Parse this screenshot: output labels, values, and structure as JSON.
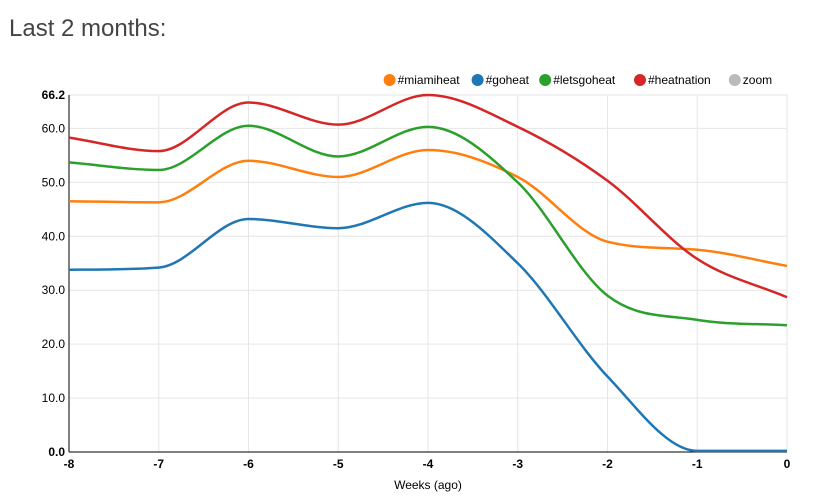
{
  "page": {
    "heading": "Last 2 months:"
  },
  "chart_data": {
    "type": "line",
    "title": "",
    "xlabel": "Weeks (ago)",
    "ylabel": "",
    "x": [
      -8,
      -7,
      -6,
      -5,
      -4,
      -3,
      -2,
      -1,
      0
    ],
    "x_ticks": [
      "-8",
      "-7",
      "-6",
      "-5",
      "-4",
      "-3",
      "-2",
      "-1",
      "0"
    ],
    "y_ticks": [
      {
        "value": 0,
        "label": "0.0"
      },
      {
        "value": 10,
        "label": "10.0"
      },
      {
        "value": 20,
        "label": "20.0"
      },
      {
        "value": 30,
        "label": "30.0"
      },
      {
        "value": 40,
        "label": "40.0"
      },
      {
        "value": 50,
        "label": "50.0"
      },
      {
        "value": 60,
        "label": "60.0"
      },
      {
        "value": 66.2,
        "label": "66.2"
      }
    ],
    "xlim": [
      -8,
      0
    ],
    "ylim": [
      0,
      66.2
    ],
    "grid": true,
    "legend_position": "top-right",
    "series": [
      {
        "name": "#miamiheat",
        "color": "#ff7f0e",
        "values": [
          46.5,
          46.3,
          54.0,
          51.0,
          56.0,
          51.0,
          39.0,
          37.5,
          34.5
        ]
      },
      {
        "name": "#goheat",
        "color": "#1f77b4",
        "values": [
          33.8,
          34.2,
          43.2,
          41.5,
          46.2,
          35.0,
          14.0,
          0.2,
          0.2
        ]
      },
      {
        "name": "#letsgoheat",
        "color": "#2ca02c",
        "values": [
          53.7,
          52.3,
          60.5,
          54.8,
          60.3,
          50.0,
          29.0,
          24.5,
          23.5
        ]
      },
      {
        "name": "#heatnation",
        "color": "#d62728",
        "values": [
          58.3,
          55.8,
          64.8,
          60.7,
          66.2,
          60.3,
          50.3,
          35.8,
          28.7
        ]
      }
    ],
    "legend_extra": {
      "name": "zoom",
      "color": "#bbbbbb"
    }
  }
}
